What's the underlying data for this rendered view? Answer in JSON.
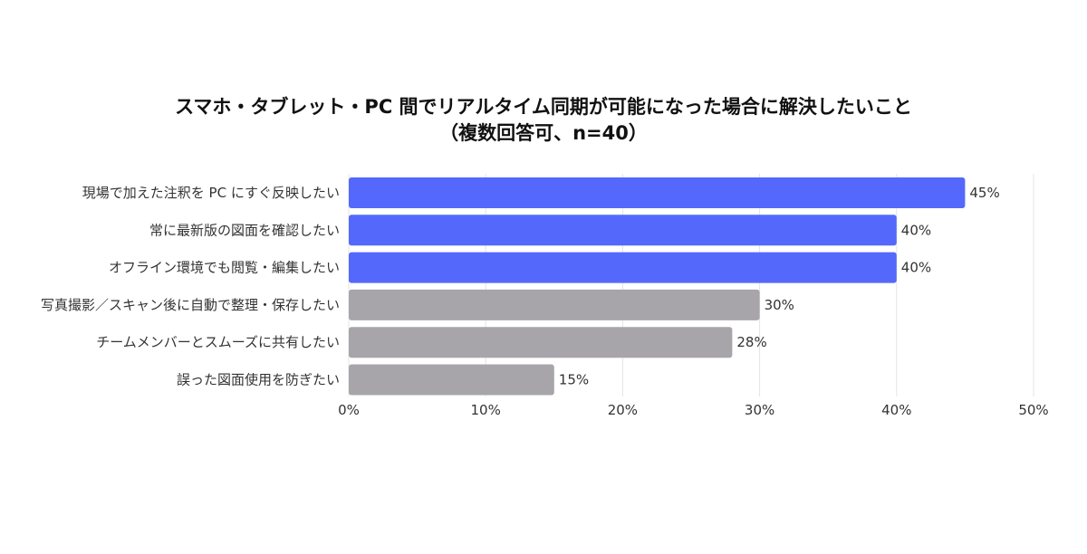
{
  "chart_data": {
    "type": "bar",
    "orientation": "horizontal",
    "title": "スマホ・タブレット・PC 間でリアルタイム同期が可能になった場合に解決したいこと",
    "subtitle": "（複数回答可、n=40）",
    "categories": [
      "現場で加えた注釈を PC にすぐ反映したい",
      "常に最新版の図面を確認したい",
      "オフライン環境でも閲覧・編集したい",
      "写真撮影／スキャン後に自動で整理・保存したい",
      "チームメンバーとスムーズに共有したい",
      "誤った図面使用を防ぎたい"
    ],
    "values": [
      45,
      40,
      40,
      30,
      28,
      15
    ],
    "value_labels": [
      "45%",
      "40%",
      "40%",
      "30%",
      "28%",
      "15%"
    ],
    "xlim": [
      0,
      50
    ],
    "ticks": [
      0,
      10,
      20,
      30,
      40,
      50
    ],
    "tick_labels": [
      "0%",
      "10%",
      "20%",
      "30%",
      "40%",
      "50%"
    ],
    "grid": true,
    "legend": "none",
    "colors": {
      "highlight": "#5469fb",
      "normal": "#a8a5aa",
      "grid": "#e4e4e4"
    },
    "highlight_top_n": 3
  }
}
